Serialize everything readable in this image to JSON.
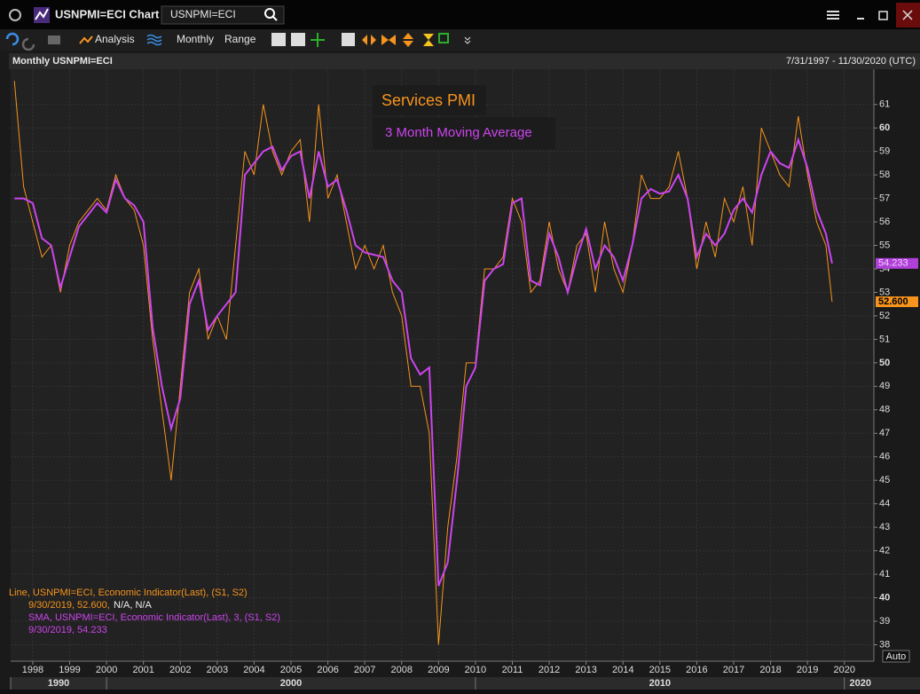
{
  "ui": {
    "window_title": "USNPMI=ECI Chart",
    "search": "USNPMI=ECI",
    "toolbar": [
      "Analysis",
      "Monthly",
      "Range"
    ],
    "chart_header": "Monthly USNPMI=ECI",
    "date_range": "7/31/1997 - 11/30/2020 (UTC)",
    "auto": "Auto"
  },
  "chart_data": {
    "type": "line",
    "x": [
      1997.5,
      1997.75,
      1998,
      1998.25,
      1998.5,
      1998.75,
      1999,
      1999.25,
      1999.5,
      1999.75,
      2000,
      2000.25,
      2000.5,
      2000.75,
      2001,
      2001.25,
      2001.5,
      2001.75,
      2002,
      2002.25,
      2002.5,
      2002.75,
      2003,
      2003.25,
      2003.5,
      2003.75,
      2004,
      2004.25,
      2004.5,
      2004.75,
      2005,
      2005.25,
      2005.5,
      2005.75,
      2006,
      2006.25,
      2006.5,
      2006.75,
      2007,
      2007.25,
      2007.5,
      2007.75,
      2008,
      2008.25,
      2008.5,
      2008.75,
      2009,
      2009.25,
      2009.5,
      2009.75,
      2010,
      2010.25,
      2010.5,
      2010.75,
      2011,
      2011.25,
      2011.5,
      2011.75,
      2012,
      2012.25,
      2012.5,
      2012.75,
      2013,
      2013.25,
      2013.5,
      2013.75,
      2014,
      2014.25,
      2014.5,
      2014.75,
      2015,
      2015.25,
      2015.5,
      2015.75,
      2016,
      2016.25,
      2016.5,
      2016.75,
      2017,
      2017.25,
      2017.5,
      2017.75,
      2018,
      2018.25,
      2018.5,
      2018.75,
      2019,
      2019.25,
      2019.5,
      2019.667
    ],
    "series": [
      {
        "name": "Services PMI",
        "color": "#f7941d",
        "last_value_label": "52.600",
        "values": [
          62,
          57.5,
          56,
          54.5,
          55,
          53,
          55,
          56,
          56.5,
          57,
          56.5,
          58,
          57,
          56.5,
          55,
          51,
          48,
          45,
          49,
          53,
          54,
          51,
          52,
          51,
          55,
          59,
          58,
          61,
          59,
          58,
          59,
          59.5,
          56,
          61,
          57,
          58,
          56,
          54,
          55,
          54,
          55,
          53,
          52,
          49,
          49,
          47,
          38,
          43,
          46,
          50,
          50,
          54,
          54,
          54.5,
          57,
          56,
          53,
          53.5,
          56,
          54,
          53,
          55,
          55.5,
          53,
          56,
          54,
          53,
          55,
          58,
          57,
          57,
          57.5,
          59,
          57,
          54,
          56,
          54.5,
          57,
          56,
          57.5,
          55,
          60,
          59,
          58,
          57.5,
          60.5,
          58,
          56,
          55,
          52.6
        ]
      },
      {
        "name": "3 Month Moving Average",
        "color": "#cc44ee",
        "last_value_label": "54.233",
        "values": [
          57,
          57,
          56.8,
          55.3,
          55,
          53.2,
          54.5,
          55.8,
          56.3,
          56.8,
          56.4,
          57.8,
          57,
          56.7,
          56,
          51.5,
          49,
          47.2,
          48.5,
          52.5,
          53.5,
          51.4,
          52,
          52.5,
          53,
          58,
          58.5,
          59,
          59.2,
          58.2,
          58.8,
          59,
          57,
          59,
          57.5,
          57.8,
          56.5,
          55,
          54.7,
          54.6,
          54.5,
          53.5,
          53,
          50.2,
          49.5,
          49.8,
          40.5,
          41.5,
          45,
          49,
          49.8,
          53.5,
          54,
          54.2,
          56.8,
          57,
          53.5,
          53.3,
          55.5,
          54.5,
          53,
          54.5,
          55.7,
          54,
          55,
          54.5,
          53.5,
          55,
          57,
          57.4,
          57.2,
          57.3,
          58,
          57,
          54.5,
          55.5,
          55,
          55.5,
          56.5,
          57,
          56.4,
          58,
          59,
          58.5,
          58.3,
          59.5,
          58.3,
          56.5,
          55.5,
          54.233
        ]
      }
    ],
    "xlim": [
      1997.4,
      2020.8
    ],
    "xticks": [
      1998,
      1999,
      2000,
      2001,
      2002,
      2003,
      2004,
      2005,
      2006,
      2007,
      2008,
      2009,
      2010,
      2011,
      2012,
      2013,
      2014,
      2015,
      2016,
      2017,
      2018,
      2019,
      2020
    ],
    "decade_ticks": [
      1990,
      2000,
      2010,
      2020
    ],
    "ylim": [
      37.3,
      62.5
    ],
    "yticks": [
      38,
      39,
      40,
      41,
      42,
      43,
      44,
      45,
      46,
      47,
      48,
      49,
      50,
      51,
      52,
      53,
      54,
      55,
      56,
      57,
      58,
      59,
      60,
      61
    ],
    "grid": true,
    "info": [
      "Line, USNPMI=ECI, Economic Indicator(Last), (S1, S2)",
      "9/30/2019, 52.600,",
      "N/A, N/A",
      "SMA, USNPMI=ECI, Economic Indicator(Last), 3, (S1, S2)",
      "9/30/2019, 54.233"
    ]
  }
}
